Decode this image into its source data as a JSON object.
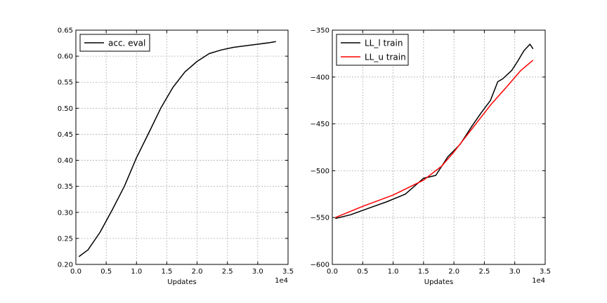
{
  "chart_data": [
    {
      "type": "line",
      "xlabel": "Updates",
      "x_multiplier": "1e4",
      "xlim": [
        0,
        3.5
      ],
      "ylim": [
        0.2,
        0.65
      ],
      "xticks": [
        "0.0",
        "0.5",
        "1.0",
        "1.5",
        "2.0",
        "2.5",
        "3.0",
        "3.5"
      ],
      "yticks": [
        "0.20",
        "0.25",
        "0.30",
        "0.35",
        "0.40",
        "0.45",
        "0.50",
        "0.55",
        "0.60",
        "0.65"
      ],
      "grid": true,
      "legend_position": "top-left",
      "series": [
        {
          "name": "acc. eval",
          "color": "#000000",
          "x": [
            0.05,
            0.2,
            0.4,
            0.6,
            0.8,
            1.0,
            1.2,
            1.4,
            1.6,
            1.8,
            2.0,
            2.2,
            2.4,
            2.6,
            2.8,
            3.0,
            3.2,
            3.3
          ],
          "y": [
            0.215,
            0.228,
            0.262,
            0.305,
            0.35,
            0.405,
            0.452,
            0.5,
            0.54,
            0.57,
            0.59,
            0.605,
            0.612,
            0.617,
            0.62,
            0.623,
            0.626,
            0.628
          ]
        }
      ]
    },
    {
      "type": "line",
      "xlabel": "Updates",
      "x_multiplier": "1e4",
      "xlim": [
        0,
        3.5
      ],
      "ylim": [
        -600,
        -350
      ],
      "xticks": [
        "0.0",
        "0.5",
        "1.0",
        "1.5",
        "2.0",
        "2.5",
        "3.0",
        "3.5"
      ],
      "yticks": [
        "−600",
        "−550",
        "−500",
        "−450",
        "−400",
        "−350"
      ],
      "grid": true,
      "legend_position": "top-left",
      "series": [
        {
          "name": "LL_l train",
          "color": "#000000",
          "x": [
            0.05,
            0.3,
            0.6,
            0.9,
            1.2,
            1.5,
            1.7,
            1.9,
            2.1,
            2.3,
            2.45,
            2.6,
            2.72,
            2.8,
            2.95,
            3.05,
            3.15,
            3.25,
            3.3
          ],
          "y": [
            -551,
            -547,
            -540,
            -533,
            -525,
            -508,
            -505,
            -485,
            -472,
            -452,
            -438,
            -425,
            -405,
            -402,
            -393,
            -383,
            -372,
            -365,
            -370
          ]
        },
        {
          "name": "LL_u train",
          "color": "#ff0000",
          "x": [
            0.05,
            0.5,
            1.0,
            1.5,
            1.8,
            2.0,
            2.3,
            2.6,
            2.9,
            3.1,
            3.3
          ],
          "y": [
            -550,
            -538,
            -526,
            -510,
            -495,
            -480,
            -455,
            -430,
            -408,
            -393,
            -382
          ]
        }
      ]
    }
  ]
}
